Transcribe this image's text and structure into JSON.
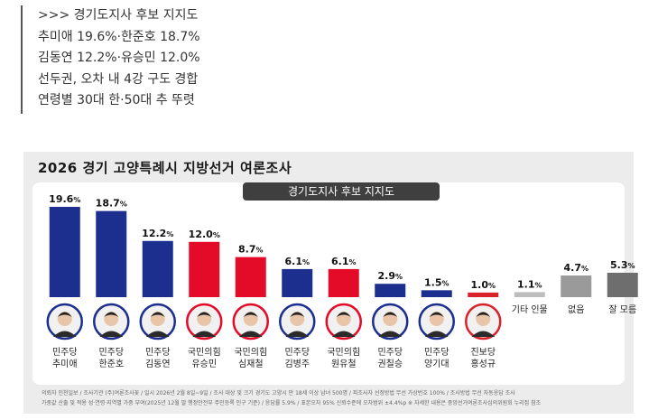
{
  "summary": {
    "lines": [
      ">>> 경기도지사 후보 지지도",
      "추미애 19.6%·한준호 18.7%",
      "김동연 12.2%·유승민 12.0%",
      "선두권, 오차 내 4강 구도 경합",
      "연령별 30대 한·50대 추 뚜렷"
    ]
  },
  "card": {
    "title": "2026 경기 고양특례시 지방선거 여론조사",
    "subtitle": "경기도지사 후보 지지도",
    "footnotes": [
      "의뢰자 인천일보 / 조사기관 (주)여론조사꽃 / 일시 2026년 2월 8일~9일 / 조사 대상 및 크기 경기도 고양시 만 18세 이상 남녀 500명 / 피조사자 선정방법 무선 가상번호 100% / 조사방법 무선 자동응답 조사",
      "가중값 산출 및 적용 성·연령·지역별 가중 부여(2025년 12월 말 행정안전부 주민등록 인구 기준) / 응답률 5.9% / 표본오차 95% 신뢰수준에 오차범위 ±4.4%p ※ 자세한 내용은 중앙선거여론조사심의위원회 누리집 참조"
    ]
  },
  "colors": {
    "minjoo": "#1c2f8f",
    "gukmin": "#e30b27",
    "jinbo": "#d8232a",
    "gray_dark": "#6e6e6e",
    "gray": "#9a9a9a",
    "gray_light": "#bdbdbd"
  },
  "chart_data": {
    "type": "bar",
    "title": "경기도지사 후보 지지도",
    "unit": "%",
    "ylim": [
      0,
      20
    ],
    "grid": false,
    "items": [
      {
        "party": "민주당",
        "name": "추미애",
        "value": 19.6,
        "color": "#1c2f8f",
        "photo": true
      },
      {
        "party": "민주당",
        "name": "한준호",
        "value": 18.7,
        "color": "#1c2f8f",
        "photo": true
      },
      {
        "party": "민주당",
        "name": "김동연",
        "value": 12.2,
        "color": "#1c2f8f",
        "photo": true
      },
      {
        "party": "국민의힘",
        "name": "유승민",
        "value": 12.0,
        "color": "#e30b27",
        "photo": true
      },
      {
        "party": "국민의힘",
        "name": "심재철",
        "value": 8.7,
        "color": "#e30b27",
        "photo": true
      },
      {
        "party": "민주당",
        "name": "김병주",
        "value": 6.1,
        "color": "#1c2f8f",
        "photo": true
      },
      {
        "party": "국민의힘",
        "name": "원유철",
        "value": 6.1,
        "color": "#e30b27",
        "photo": true
      },
      {
        "party": "민주당",
        "name": "권칠승",
        "value": 2.9,
        "color": "#1c2f8f",
        "photo": true
      },
      {
        "party": "민주당",
        "name": "양기대",
        "value": 1.5,
        "color": "#1c2f8f",
        "photo": true
      },
      {
        "party": "진보당",
        "name": "홍성규",
        "value": 1.0,
        "color": "#d8232a",
        "photo": true
      },
      {
        "party": "",
        "name": "기타 인물",
        "value": 1.1,
        "color": "#bdbdbd",
        "photo": false
      },
      {
        "party": "",
        "name": "없음",
        "value": 4.7,
        "color": "#9a9a9a",
        "photo": false
      },
      {
        "party": "",
        "name": "잘 모름",
        "value": 5.3,
        "color": "#6e6e6e",
        "photo": false
      }
    ]
  }
}
